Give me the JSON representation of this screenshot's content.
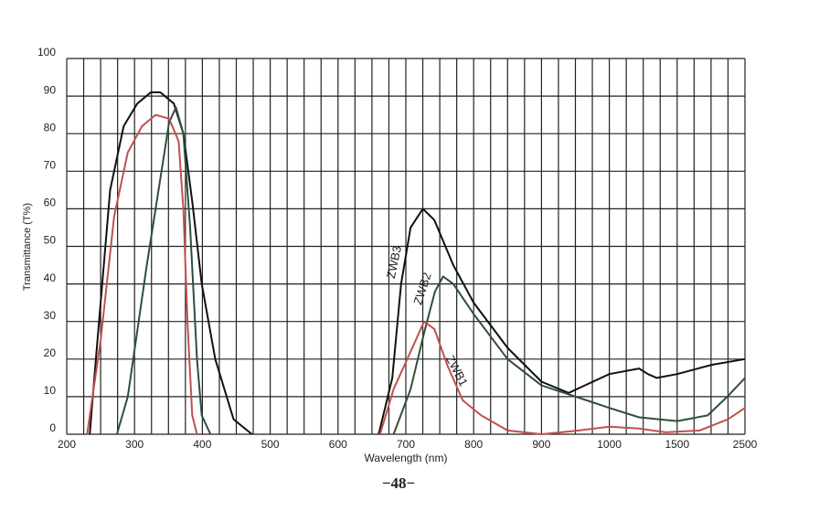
{
  "chart_data": {
    "type": "line",
    "xlabel": "Wavelength (nm)",
    "ylabel": "Transmittance (T%)",
    "footer": "−48−",
    "xlim": [
      200,
      2500
    ],
    "xticks": [
      200,
      300,
      400,
      500,
      600,
      700,
      800,
      900,
      1000,
      1500,
      2500
    ],
    "ylim": [
      0,
      100
    ],
    "yticks": [
      0,
      10,
      20,
      30,
      40,
      50,
      60,
      70,
      80,
      90,
      100
    ],
    "grid": true,
    "series": [
      {
        "name": "ZWB3",
        "color": "#111111",
        "x": [
          234,
          243,
          264,
          284,
          304,
          324,
          338,
          358,
          372,
          385,
          399,
          419,
          446,
          473,
          null,
          660,
          680,
          693,
          707,
          725,
          742,
          770,
          800,
          850,
          900,
          940,
          1000,
          1220,
          1285,
          1350,
          1500,
          2014,
          2500
        ],
        "values": [
          0,
          20,
          65,
          82,
          88,
          91,
          91,
          88,
          80,
          62,
          40,
          20,
          4,
          0,
          null,
          0,
          15,
          40,
          55,
          60,
          57,
          45,
          35,
          23,
          14,
          11,
          16,
          17.5,
          16,
          15,
          16,
          18.5,
          20
        ]
      },
      {
        "name": "ZWB2",
        "color": "#2f4f3a",
        "x": [
          274,
          290,
          318,
          338,
          351,
          361,
          372,
          382,
          392,
          399,
          412,
          null,
          682,
          707,
          727,
          743,
          755,
          770,
          800,
          850,
          900,
          967,
          1000,
          1220,
          1500,
          1950,
          2240,
          2500
        ],
        "values": [
          0,
          10,
          45,
          68,
          83,
          87,
          80,
          55,
          20,
          5,
          0,
          null,
          0,
          12,
          27,
          38,
          42,
          40,
          32,
          20,
          13,
          9,
          7,
          4.5,
          3.5,
          5,
          10,
          15
        ]
      },
      {
        "name": "ZWB1",
        "color": "#c0504d",
        "x": [
          230,
          250,
          270,
          290,
          311,
          331,
          351,
          365,
          372,
          378,
          385,
          392,
          null,
          662,
          682,
          707,
          727,
          742,
          762,
          784,
          811,
          850,
          900,
          955,
          1000,
          1220,
          1415,
          1830,
          2250,
          2500
        ],
        "values": [
          0,
          25,
          58,
          75,
          82,
          85,
          84,
          78,
          60,
          30,
          5,
          0,
          null,
          0,
          12,
          22,
          30,
          28,
          18,
          9,
          5,
          1,
          0,
          1,
          2,
          1.5,
          0.5,
          1,
          4,
          7
        ]
      }
    ]
  }
}
